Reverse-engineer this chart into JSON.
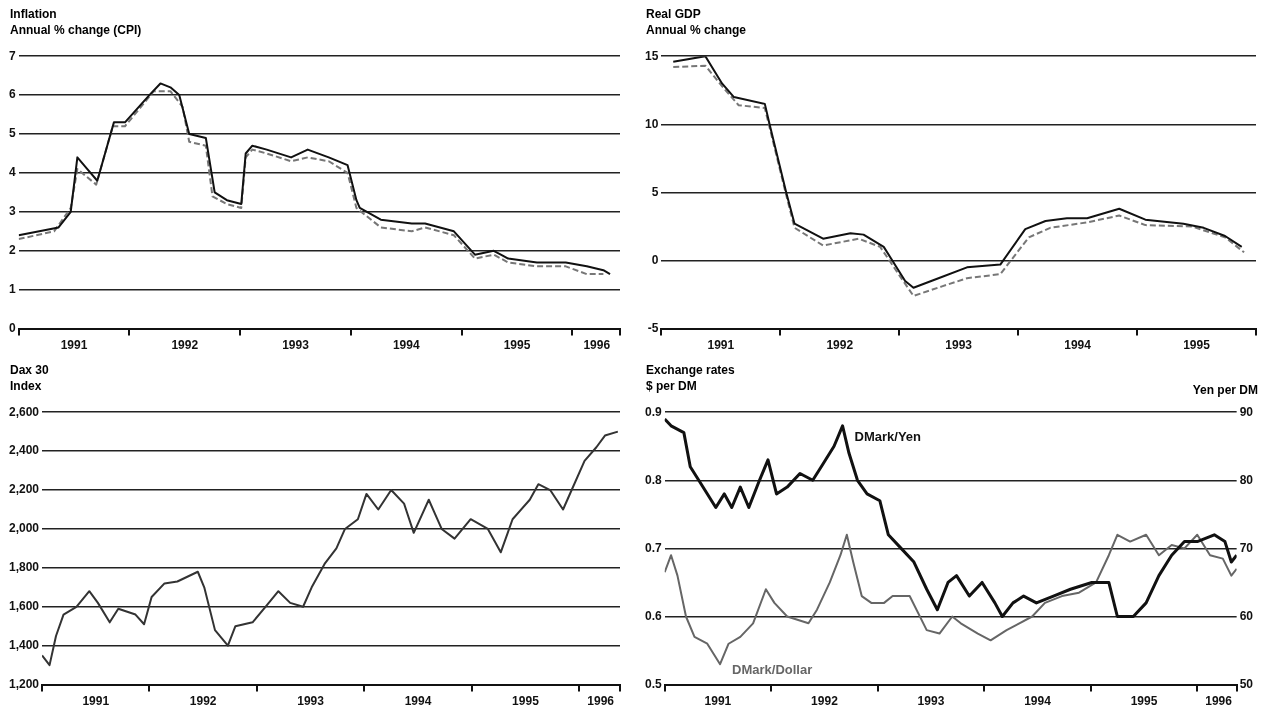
{
  "chart_data": [
    {
      "type": "line",
      "title": "Inflation",
      "ylabel": "Annual % change (CPI)",
      "xlim": [
        1991,
        1996.43
      ],
      "xticks": [
        {
          "value": 1991,
          "label": null
        },
        {
          "value": 1991.5,
          "label": "1991"
        },
        {
          "value": 1992,
          "label": null
        },
        {
          "value": 1992.5,
          "label": "1992"
        },
        {
          "value": 1993,
          "label": null
        },
        {
          "value": 1993.5,
          "label": "1993"
        },
        {
          "value": 1994,
          "label": null
        },
        {
          "value": 1994.5,
          "label": "1994"
        },
        {
          "value": 1995,
          "label": null
        },
        {
          "value": 1995.5,
          "label": "1995"
        },
        {
          "value": 1996,
          "label": null
        },
        {
          "value": 1996.22,
          "label": "1996"
        },
        {
          "value": 1996.43,
          "label": null
        }
      ],
      "ylim": [
        0,
        7
      ],
      "yticks": [
        0,
        1,
        2,
        3,
        4,
        5,
        6,
        7
      ],
      "grid": "y",
      "legend": false,
      "marker": "none",
      "series": [
        {
          "color": "#111111",
          "line_style": "solid",
          "x": [
            1991.0,
            1991.36,
            1991.47,
            1991.53,
            1991.62,
            1991.71,
            1991.81,
            1991.86,
            1991.96,
            1992.18,
            1992.28,
            1992.37,
            1992.45,
            1992.54,
            1992.69,
            1992.77,
            1992.88,
            1993.01,
            1993.05,
            1993.11,
            1993.24,
            1993.46,
            1993.61,
            1993.8,
            1993.97,
            1994.05,
            1994.08,
            1994.27,
            1994.55,
            1994.67,
            1994.93,
            1995.12,
            1995.29,
            1995.42,
            1995.68,
            1995.94,
            1996.13,
            1996.28,
            1996.34
          ],
          "values": [
            2.4,
            2.6,
            3.0,
            4.4,
            4.1,
            3.8,
            4.8,
            5.3,
            5.3,
            6.0,
            6.3,
            6.2,
            6.0,
            5.0,
            4.9,
            3.5,
            3.3,
            3.2,
            4.5,
            4.7,
            4.6,
            4.4,
            4.6,
            4.4,
            4.2,
            3.3,
            3.1,
            2.8,
            2.7,
            2.7,
            2.5,
            1.9,
            2.0,
            1.8,
            1.7,
            1.7,
            1.6,
            1.5,
            1.4
          ]
        },
        {
          "color": "#777777",
          "line_style": "dashed",
          "x": [
            1991.0,
            1991.32,
            1991.47,
            1991.53,
            1991.7,
            1991.85,
            1991.96,
            1992.22,
            1992.37,
            1992.48,
            1992.54,
            1992.69,
            1992.75,
            1992.88,
            1993.01,
            1993.05,
            1993.11,
            1993.24,
            1993.46,
            1993.61,
            1993.8,
            1993.97,
            1994.05,
            1994.27,
            1994.55,
            1994.67,
            1994.93,
            1995.12,
            1995.29,
            1995.42,
            1995.68,
            1995.94,
            1996.13,
            1996.28
          ],
          "values": [
            2.3,
            2.5,
            3.1,
            4.1,
            3.7,
            5.2,
            5.2,
            6.1,
            6.1,
            5.7,
            4.8,
            4.7,
            3.4,
            3.2,
            3.1,
            4.4,
            4.6,
            4.5,
            4.3,
            4.4,
            4.3,
            4.0,
            3.1,
            2.6,
            2.5,
            2.6,
            2.4,
            1.8,
            1.9,
            1.7,
            1.6,
            1.6,
            1.4,
            1.4
          ]
        }
      ]
    },
    {
      "type": "line",
      "title": "Real GDP",
      "ylabel": "Annual % change",
      "xlim": [
        1991,
        1996
      ],
      "xticks": [
        {
          "value": 1991,
          "label": null
        },
        {
          "value": 1991.5,
          "label": "1991"
        },
        {
          "value": 1992,
          "label": null
        },
        {
          "value": 1992.5,
          "label": "1992"
        },
        {
          "value": 1993,
          "label": null
        },
        {
          "value": 1993.5,
          "label": "1993"
        },
        {
          "value": 1994,
          "label": null
        },
        {
          "value": 1994.5,
          "label": "1994"
        },
        {
          "value": 1995,
          "label": null
        },
        {
          "value": 1995.5,
          "label": "1995"
        },
        {
          "value": 1996,
          "label": null
        }
      ],
      "ylim": [
        -5,
        15
      ],
      "yticks": [
        -5,
        0,
        5,
        10,
        15
      ],
      "grid": "y",
      "legend": false,
      "marker": "none",
      "series": [
        {
          "color": "#111111",
          "line_style": "solid",
          "x": [
            1991.1,
            1991.37,
            1991.51,
            1991.61,
            1991.87,
            1991.91,
            1992.05,
            1992.12,
            1992.36,
            1992.59,
            1992.7,
            1992.87,
            1993.05,
            1993.12,
            1993.33,
            1993.57,
            1993.85,
            1994.06,
            1994.23,
            1994.41,
            1994.58,
            1994.85,
            1995.07,
            1995.39,
            1995.56,
            1995.74,
            1995.88
          ],
          "values": [
            14.6,
            15.0,
            13.0,
            12.0,
            11.5,
            10.0,
            5.0,
            2.7,
            1.6,
            2.0,
            1.9,
            1.0,
            -1.5,
            -2.0,
            -1.3,
            -0.5,
            -0.3,
            2.3,
            2.9,
            3.1,
            3.1,
            3.8,
            3.0,
            2.7,
            2.4,
            1.8,
            1.0
          ]
        },
        {
          "color": "#777777",
          "line_style": "dashed",
          "x": [
            1991.1,
            1991.37,
            1991.51,
            1991.65,
            1991.87,
            1992.05,
            1992.12,
            1992.36,
            1992.66,
            1992.84,
            1993.01,
            1993.12,
            1993.36,
            1993.57,
            1993.85,
            1994.09,
            1994.27,
            1994.58,
            1994.85,
            1995.07,
            1995.46,
            1995.74,
            1995.9
          ],
          "values": [
            14.2,
            14.3,
            12.8,
            11.4,
            11.2,
            4.8,
            2.4,
            1.1,
            1.6,
            1.0,
            -1.2,
            -2.6,
            -1.9,
            -1.3,
            -1.0,
            1.7,
            2.4,
            2.8,
            3.3,
            2.6,
            2.5,
            1.7,
            0.6
          ]
        }
      ]
    },
    {
      "type": "line",
      "title": "Dax 30",
      "ylabel": "Index",
      "xlim": [
        1991,
        1996.38
      ],
      "xticks": [
        {
          "value": 1991,
          "label": null
        },
        {
          "value": 1991.5,
          "label": "1991"
        },
        {
          "value": 1992,
          "label": null
        },
        {
          "value": 1992.5,
          "label": "1992"
        },
        {
          "value": 1993,
          "label": null
        },
        {
          "value": 1993.5,
          "label": "1993"
        },
        {
          "value": 1994,
          "label": null
        },
        {
          "value": 1994.5,
          "label": "1994"
        },
        {
          "value": 1995,
          "label": null
        },
        {
          "value": 1995.5,
          "label": "1995"
        },
        {
          "value": 1996,
          "label": null
        },
        {
          "value": 1996.2,
          "label": "1996"
        },
        {
          "value": 1996.38,
          "label": null
        }
      ],
      "ylim": [
        1200,
        2600
      ],
      "yticks": [
        {
          "value": 1200,
          "label": "1,200"
        },
        {
          "value": 1400,
          "label": "1,400"
        },
        {
          "value": 1600,
          "label": "1,600"
        },
        {
          "value": 1800,
          "label": "1,800"
        },
        {
          "value": 2000,
          "label": "2,000"
        },
        {
          "value": 2200,
          "label": "2,200"
        },
        {
          "value": 2400,
          "label": "2,400"
        },
        {
          "value": 2600,
          "label": "2,600"
        }
      ],
      "grid": "y",
      "legend": false,
      "marker": "none",
      "series": [
        {
          "color": "#333333",
          "line_style": "solid",
          "x": [
            1991.0,
            1991.07,
            1991.13,
            1991.2,
            1991.32,
            1991.44,
            1991.52,
            1991.63,
            1991.71,
            1991.87,
            1991.95,
            1992.02,
            1992.14,
            1992.26,
            1992.45,
            1992.51,
            1992.61,
            1992.73,
            1992.8,
            1992.96,
            1993.08,
            1993.2,
            1993.31,
            1993.43,
            1993.51,
            1993.63,
            1993.74,
            1993.82,
            1993.94,
            1994.02,
            1994.13,
            1994.25,
            1994.37,
            1994.46,
            1994.6,
            1994.72,
            1994.84,
            1994.99,
            1995.15,
            1995.27,
            1995.38,
            1995.54,
            1995.62,
            1995.73,
            1995.85,
            1995.93,
            1996.05,
            1996.16,
            1996.24,
            1996.36
          ],
          "values": [
            1350,
            1300,
            1450,
            1560,
            1600,
            1680,
            1620,
            1520,
            1590,
            1560,
            1510,
            1650,
            1720,
            1730,
            1780,
            1700,
            1480,
            1400,
            1500,
            1520,
            1600,
            1680,
            1620,
            1600,
            1700,
            1820,
            1900,
            2000,
            2050,
            2180,
            2100,
            2200,
            2130,
            1980,
            2150,
            2000,
            1950,
            2050,
            2000,
            1880,
            2050,
            2150,
            2230,
            2200,
            2100,
            2200,
            2350,
            2420,
            2480,
            2500
          ]
        }
      ]
    },
    {
      "type": "line",
      "title": "Exchange rates",
      "ylabel": "$ per DM",
      "y2label": "Yen per DM",
      "xlim": [
        1991,
        1996.37
      ],
      "xticks": [
        {
          "value": 1991,
          "label": null
        },
        {
          "value": 1991.5,
          "label": "1991"
        },
        {
          "value": 1992,
          "label": null
        },
        {
          "value": 1992.5,
          "label": "1992"
        },
        {
          "value": 1993,
          "label": null
        },
        {
          "value": 1993.5,
          "label": "1993"
        },
        {
          "value": 1994,
          "label": null
        },
        {
          "value": 1994.5,
          "label": "1994"
        },
        {
          "value": 1995,
          "label": null
        },
        {
          "value": 1995.5,
          "label": "1995"
        },
        {
          "value": 1996,
          "label": null
        },
        {
          "value": 1996.2,
          "label": "1996"
        },
        {
          "value": 1996.37,
          "label": null
        }
      ],
      "ylim": [
        0.5,
        0.9
      ],
      "yticks": [
        0.5,
        0.6,
        0.7,
        0.8,
        0.9
      ],
      "y2lim": [
        50,
        90
      ],
      "y2ticks": [
        50,
        60,
        70,
        80,
        90
      ],
      "grid": "y",
      "legend": false,
      "marker": "none",
      "series": [
        {
          "name": "DMark/Yen",
          "axis": "y2",
          "color": "#111111",
          "line_style": "solid",
          "x": [
            1991.0,
            1991.06,
            1991.18,
            1991.24,
            1991.32,
            1991.48,
            1991.56,
            1991.63,
            1991.71,
            1991.79,
            1991.89,
            1991.97,
            1992.05,
            1992.15,
            1992.27,
            1992.39,
            1992.47,
            1992.59,
            1992.67,
            1992.73,
            1992.81,
            1992.9,
            1993.02,
            1993.1,
            1993.22,
            1993.34,
            1993.46,
            1993.56,
            1993.66,
            1993.74,
            1993.86,
            1993.98,
            1994.1,
            1994.17,
            1994.27,
            1994.37,
            1994.49,
            1994.65,
            1994.81,
            1995.01,
            1995.17,
            1995.25,
            1995.4,
            1995.52,
            1995.64,
            1995.76,
            1995.88,
            1996.0,
            1996.16,
            1996.26,
            1996.32,
            1996.37
          ],
          "values": [
            89,
            88,
            87,
            82,
            80,
            76,
            78,
            76,
            79,
            76,
            80,
            83,
            78,
            79,
            81,
            80,
            82,
            85,
            88,
            84,
            80,
            78,
            77,
            72,
            70,
            68,
            64,
            61,
            65,
            66,
            63,
            65,
            62,
            60,
            62,
            63,
            62,
            63,
            64,
            65,
            65,
            60,
            60,
            62,
            66,
            69,
            71,
            71,
            72,
            71,
            68,
            69
          ]
        },
        {
          "name": "DMark/Dollar",
          "color": "#666666",
          "line_style": "solid",
          "x": [
            1991.0,
            1991.06,
            1991.12,
            1991.2,
            1991.28,
            1991.4,
            1991.52,
            1991.6,
            1991.71,
            1991.83,
            1991.95,
            1992.03,
            1992.15,
            1992.35,
            1992.43,
            1992.55,
            1992.65,
            1992.71,
            1992.77,
            1992.85,
            1992.94,
            1993.06,
            1993.14,
            1993.3,
            1993.46,
            1993.58,
            1993.7,
            1993.78,
            1993.94,
            1994.06,
            1994.21,
            1994.33,
            1994.45,
            1994.57,
            1994.73,
            1994.89,
            1995.05,
            1995.17,
            1995.25,
            1995.37,
            1995.52,
            1995.64,
            1995.76,
            1995.88,
            1996.0,
            1996.12,
            1996.24,
            1996.32,
            1996.37
          ],
          "values": [
            0.665,
            0.69,
            0.66,
            0.6,
            0.57,
            0.56,
            0.53,
            0.56,
            0.57,
            0.59,
            0.64,
            0.62,
            0.6,
            0.59,
            0.61,
            0.65,
            0.69,
            0.72,
            0.68,
            0.63,
            0.62,
            0.62,
            0.63,
            0.63,
            0.58,
            0.575,
            0.6,
            0.59,
            0.575,
            0.565,
            0.58,
            0.59,
            0.6,
            0.62,
            0.63,
            0.635,
            0.65,
            0.69,
            0.72,
            0.71,
            0.72,
            0.69,
            0.705,
            0.7,
            0.72,
            0.69,
            0.685,
            0.66,
            0.67
          ]
        }
      ]
    }
  ]
}
